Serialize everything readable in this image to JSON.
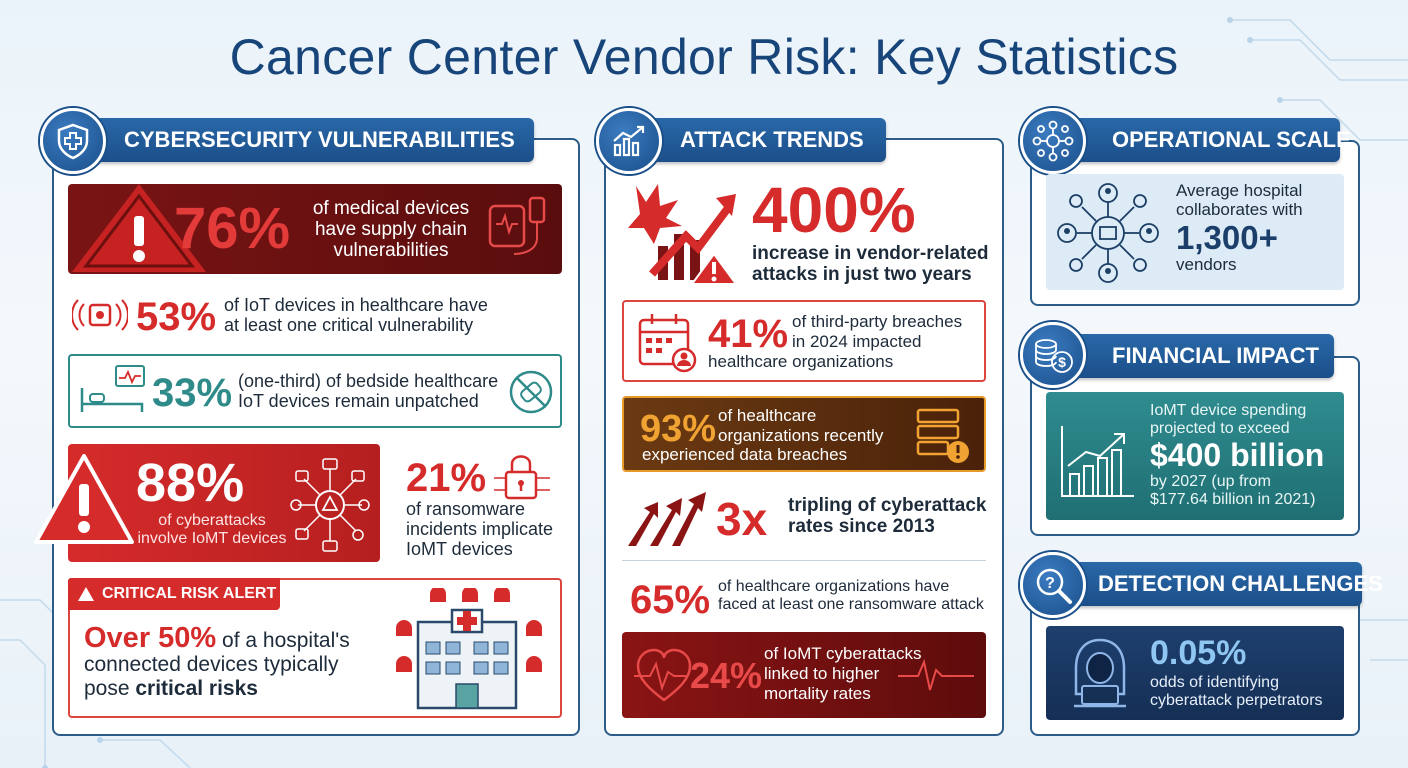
{
  "title": "Cancer Center Vendor Risk: Key Statistics",
  "colors": {
    "navy": "#17457a",
    "red": "#d62b2b",
    "teal": "#2f8a8a",
    "orange": "#e59a2a"
  },
  "col1": {
    "header": "CYBERSECURITY VULNERABILITIES",
    "icon": "shield-medical-icon",
    "s76": {
      "value": "76%",
      "text1": "of medical devices",
      "text2": "have supply chain",
      "text3": "vulnerabilities"
    },
    "s53": {
      "value": "53%",
      "text1": "of IoT devices in healthcare have",
      "text2": "at least one critical vulnerability"
    },
    "s33": {
      "value": "33%",
      "text1": "(one-third) of bedside healthcare",
      "text2": "IoT devices remain unpatched"
    },
    "s88": {
      "value": "88%",
      "text1": "of cyberattacks",
      "text2": "involve IoMT devices"
    },
    "s21": {
      "value": "21%",
      "text1": "of ransomware",
      "text2": "incidents implicate",
      "text3": "IoMT devices"
    },
    "alert": {
      "label": "CRITICAL RISK ALERT",
      "lead": "Over 50%",
      "text1": " of a hospital's",
      "text2": "connected devices typically",
      "text3a": "pose ",
      "text3b": "critical risks"
    }
  },
  "col2": {
    "header": "ATTACK TRENDS",
    "icon": "trend-chart-icon",
    "s400": {
      "value": "400%",
      "text1": "increase in vendor-related",
      "text2": "attacks in just two years"
    },
    "s41": {
      "value": "41%",
      "text1": "of third-party breaches",
      "text2": "in 2024 impacted",
      "text3": "healthcare organizations"
    },
    "s93": {
      "value": "93%",
      "text1": "of healthcare",
      "text2": "organizations recently",
      "text3": "experienced data breaches"
    },
    "s3x": {
      "value": "3x",
      "text1": "tripling of cyberattack",
      "text2": "rates since 2013"
    },
    "s65": {
      "value": "65%",
      "text1": "of healthcare organizations have",
      "text2": "faced at least one ransomware attack"
    },
    "s24": {
      "value": "24%",
      "text1": "of IoMT cyberattacks",
      "text2": "linked to higher",
      "text3": "mortality rates"
    }
  },
  "col3": {
    "scale": {
      "header": "OPERATIONAL SCALE",
      "text1": "Average hospital",
      "text2": "collaborates with",
      "value": "1,300+",
      "text3": "vendors"
    },
    "financial": {
      "header": "FINANCIAL IMPACT",
      "text1": "IoMT device spending",
      "text2": "projected to exceed",
      "value": "$400 billion",
      "text3": "by 2027 (up from",
      "text4": "$177.64 billion in 2021)"
    },
    "detection": {
      "header": "DETECTION CHALLENGES",
      "value": "0.05%",
      "text1": "odds of identifying",
      "text2": "cyberattack perpetrators"
    }
  }
}
